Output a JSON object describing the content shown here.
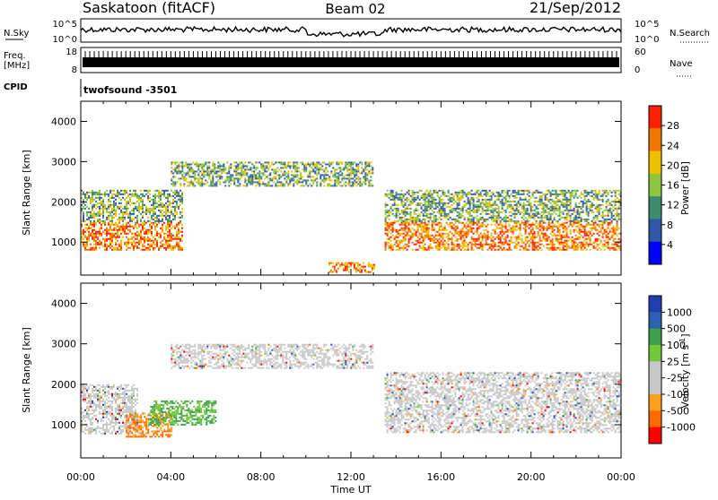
{
  "header": {
    "station": "Saskatoon (fitACF)",
    "beam": "Beam 02",
    "date": "21/Sep/2012"
  },
  "side_labels": {
    "nsky": "N.Sky",
    "nsearch": "N.Search",
    "freq_line1": "Freq.",
    "freq_line2": "[MHz]",
    "nave": "Nave",
    "cpid": "CPID"
  },
  "noise_axis_left": [
    "10^5",
    "10^0"
  ],
  "noise_axis_right": [
    "10^5",
    "10^0"
  ],
  "freq_axis_left": [
    "18",
    "8"
  ],
  "nave_axis_right": [
    "60",
    "0"
  ],
  "cpid_text": "twofsound  -3501",
  "x_axis": {
    "ticks": [
      "00:00",
      "04:00",
      "08:00",
      "12:00",
      "16:00",
      "20:00",
      "00:00"
    ],
    "label": "Time UT"
  },
  "colors": {
    "power_scale": [
      "#0000ff",
      "#2e57a6",
      "#3e8a6e",
      "#8cc63e",
      "#f0c000",
      "#f07800",
      "#ff2000"
    ],
    "velocity_scale": [
      "#ff0000",
      "#ff6a00",
      "#ff9f20",
      "#c8c8c8",
      "#c8c8c8",
      "#72c83a",
      "#3ea04a",
      "#3060b0",
      "#1f3fb0"
    ]
  },
  "chart_data": [
    {
      "type": "heatmap",
      "panel": "power",
      "xlabel": "",
      "ylabel": "Slant Range [km]",
      "xlim": [
        "00:00",
        "24:00"
      ],
      "ylim": [
        180,
        4500
      ],
      "y_ticks": [
        "1000",
        "2000",
        "3000",
        "4000"
      ],
      "colorbar": {
        "label": "Power [dB]",
        "ticks": [
          "28",
          "24",
          "20",
          "16",
          "12",
          "8",
          "4"
        ],
        "range": [
          0,
          30
        ]
      },
      "features": [
        {
          "start_h": 0.0,
          "end_h": 4.5,
          "range_km": [
            800,
            1500
          ],
          "level": "high"
        },
        {
          "start_h": 0.0,
          "end_h": 4.5,
          "range_km": [
            1500,
            2300
          ],
          "level": "mid"
        },
        {
          "start_h": 4.0,
          "end_h": 13.0,
          "range_km": [
            2400,
            3000
          ],
          "level": "mid"
        },
        {
          "start_h": 11.0,
          "end_h": 13.0,
          "range_km": [
            250,
            500
          ],
          "level": "high"
        },
        {
          "start_h": 13.5,
          "end_h": 24.0,
          "range_km": [
            800,
            1500
          ],
          "level": "high"
        },
        {
          "start_h": 13.5,
          "end_h": 24.0,
          "range_km": [
            1500,
            2300
          ],
          "level": "mid"
        }
      ]
    },
    {
      "type": "heatmap",
      "panel": "velocity",
      "xlabel": "Time UT",
      "ylabel": "Slant Range [km]",
      "xlim": [
        "00:00",
        "24:00"
      ],
      "ylim": [
        180,
        4500
      ],
      "y_ticks": [
        "1000",
        "2000",
        "3000",
        "4000"
      ],
      "colorbar": {
        "label": "Velocity [m s^-1]",
        "ticks": [
          "1000",
          "500",
          "100",
          "25",
          "-25",
          "-100",
          "-500",
          "-1000"
        ],
        "range": [
          -1000,
          1000
        ]
      },
      "features": [
        {
          "start_h": 0.0,
          "end_h": 2.5,
          "range_km": [
            800,
            2000
          ],
          "level": "low"
        },
        {
          "start_h": 2.0,
          "end_h": 4.0,
          "range_km": [
            700,
            1300
          ],
          "level": "negative"
        },
        {
          "start_h": 3.0,
          "end_h": 6.0,
          "range_km": [
            1000,
            1600
          ],
          "level": "positive"
        },
        {
          "start_h": 4.0,
          "end_h": 13.0,
          "range_km": [
            2400,
            3000
          ],
          "level": "low"
        },
        {
          "start_h": 13.5,
          "end_h": 24.0,
          "range_km": [
            800,
            2300
          ],
          "level": "low"
        }
      ]
    }
  ]
}
